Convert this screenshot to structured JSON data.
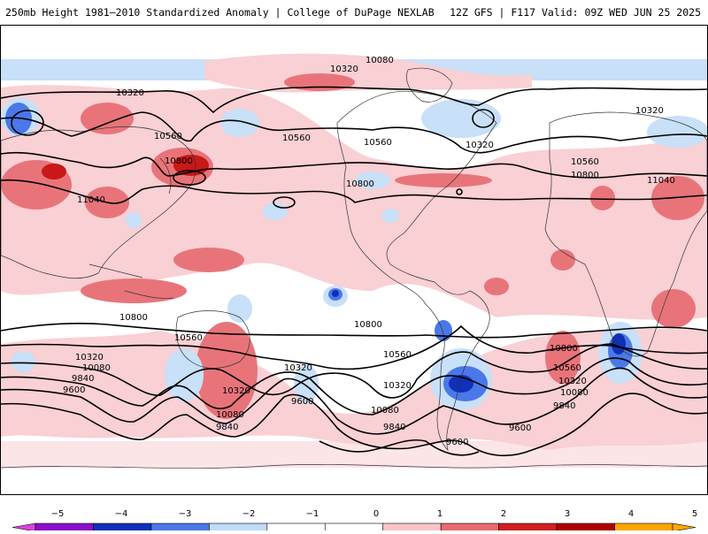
{
  "header": {
    "title": "250mb Height 1981–2010 Standardized Anomaly | College of DuPage NEXLAB",
    "run_info": "12Z GFS | F117 Valid: 09Z WED JUN 25 2025"
  },
  "map": {
    "projection": "equirectangular (Pacific-centered)",
    "contour_labels": [
      "10080",
      "10320",
      "10320",
      "10560",
      "10800",
      "11040",
      "10560",
      "10320",
      "10800",
      "10560",
      "10320",
      "10560",
      "10800",
      "10320",
      "11040",
      "10800",
      "10560",
      "10320",
      "10080",
      "9840",
      "9600",
      "10320",
      "10080",
      "9840",
      "9600",
      "10800",
      "10560",
      "10320",
      "10080",
      "9840",
      "9600",
      "10800",
      "10560",
      "10320",
      "10080",
      "9840",
      "9600"
    ]
  },
  "colorbar": {
    "ticks": [
      "−5",
      "−4",
      "−3",
      "−2",
      "−1",
      "0",
      "1",
      "2",
      "3",
      "4",
      "5"
    ],
    "colors": [
      "#e040e0",
      "#8a10c8",
      "#1030b8",
      "#4a78e8",
      "#c0dcf8",
      "#ffffff",
      "#ffffff",
      "#f8c4c8",
      "#e86a70",
      "#d02020",
      "#b00000",
      "#ffa500",
      "#ffa500"
    ]
  }
}
